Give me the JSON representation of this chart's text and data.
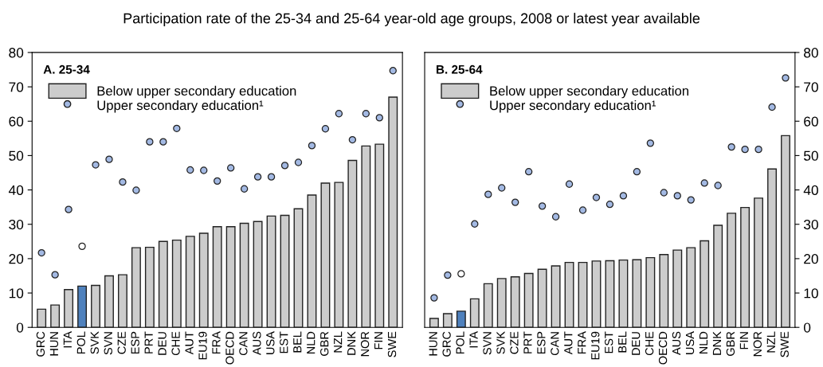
{
  "chart_data": [
    {
      "type": "bar",
      "title": "A. 25-34",
      "annotations": [
        "Participation rate of the 25-34 and 25-64 year-old age groups, 2008 or latest year available"
      ],
      "categories": [
        "GRC",
        "HUN",
        "ITA",
        "POL",
        "SVK",
        "SVN",
        "CZE",
        "ESP",
        "PRT",
        "DEU",
        "CHE",
        "AUT",
        "EU19",
        "FRA",
        "OECD",
        "CAN",
        "AUS",
        "USA",
        "EST",
        "BEL",
        "NLD",
        "GBR",
        "NZL",
        "DNK",
        "NOR",
        "FIN",
        "SWE"
      ],
      "series": [
        {
          "name": "Below upper secondary education",
          "color": "#cccccc",
          "colors": [
            "#cccccc",
            "#cccccc",
            "#cccccc",
            "#4f81bd",
            "#cccccc",
            "#cccccc",
            "#cccccc",
            "#cccccc",
            "#cccccc",
            "#cccccc",
            "#cccccc",
            "#cccccc",
            "#cccccc",
            "#cccccc",
            "#cccccc",
            "#cccccc",
            "#cccccc",
            "#cccccc",
            "#cccccc",
            "#cccccc",
            "#cccccc",
            "#cccccc",
            "#cccccc",
            "#cccccc",
            "#cccccc",
            "#cccccc",
            "#cccccc"
          ],
          "values": [
            5.3,
            6.5,
            11,
            12,
            12.2,
            15,
            15.3,
            23.2,
            23.3,
            25,
            25.4,
            26.5,
            27.4,
            29.3,
            29.3,
            30.3,
            30.8,
            32.4,
            32.6,
            34.5,
            38.5,
            42,
            42.2,
            48.6,
            52.8,
            53.3,
            67
          ]
        },
        {
          "name": "Upper secondary education¹",
          "type": "scatter",
          "color": "#a3b9e3",
          "colors": [
            "#a3b9e3",
            "#a3b9e3",
            "#a3b9e3",
            "#ffffff",
            "#a3b9e3",
            "#a3b9e3",
            "#a3b9e3",
            "#a3b9e3",
            "#a3b9e3",
            "#a3b9e3",
            "#a3b9e3",
            "#a3b9e3",
            "#a3b9e3",
            "#a3b9e3",
            "#a3b9e3",
            "#a3b9e3",
            "#a3b9e3",
            "#a3b9e3",
            "#a3b9e3",
            "#a3b9e3",
            "#a3b9e3",
            "#a3b9e3",
            "#a3b9e3",
            "#a3b9e3",
            "#a3b9e3",
            "#a3b9e3",
            "#a3b9e3"
          ],
          "values": [
            21.7,
            15.3,
            34.3,
            23.6,
            47.3,
            48.9,
            42.3,
            39.9,
            54,
            54,
            57.9,
            45.8,
            45.7,
            42.6,
            46.4,
            40.3,
            43.8,
            43.8,
            47.1,
            48,
            52.9,
            57.8,
            62.2,
            54.6,
            62.2,
            61,
            74.7
          ]
        }
      ],
      "ylim": [
        0,
        80
      ],
      "yticks": [
        0,
        10,
        20,
        30,
        40,
        50,
        60,
        70,
        80
      ],
      "legend": "top left",
      "marker": "circle",
      "grid": false
    },
    {
      "type": "bar",
      "title": "B. 25-64",
      "categories": [
        "HUN",
        "GRC",
        "POL",
        "ITA",
        "SVN",
        "SVK",
        "CZE",
        "PRT",
        "ESP",
        "CAN",
        "AUT",
        "FRA",
        "EU19",
        "EST",
        "BEL",
        "DEU",
        "CHE",
        "OECD",
        "AUS",
        "USA",
        "NLD",
        "DNK",
        "GBR",
        "FIN",
        "NOR",
        "NZL",
        "SWE"
      ],
      "series": [
        {
          "name": "Below upper secondary education",
          "axis": "y2",
          "color": "#cccccc",
          "colors": [
            "#cccccc",
            "#cccccc",
            "#4f81bd",
            "#cccccc",
            "#cccccc",
            "#cccccc",
            "#cccccc",
            "#cccccc",
            "#cccccc",
            "#cccccc",
            "#cccccc",
            "#cccccc",
            "#cccccc",
            "#cccccc",
            "#cccccc",
            "#cccccc",
            "#cccccc",
            "#cccccc",
            "#cccccc",
            "#cccccc",
            "#cccccc",
            "#cccccc",
            "#cccccc",
            "#cccccc",
            "#cccccc",
            "#cccccc",
            "#cccccc"
          ],
          "values": [
            2.6,
            4,
            4.7,
            8.3,
            12.7,
            14.2,
            14.7,
            15.7,
            16.9,
            17.9,
            18.9,
            18.9,
            19.3,
            19.4,
            19.6,
            19.7,
            20.3,
            21.2,
            22.5,
            23.2,
            25.2,
            29.7,
            33.2,
            34.9,
            37.6,
            46.1,
            55.8
          ]
        },
        {
          "name": "Upper secondary education¹",
          "type": "scatter",
          "axis": "y2",
          "color": "#a3b9e3",
          "colors": [
            "#a3b9e3",
            "#a3b9e3",
            "#ffffff",
            "#a3b9e3",
            "#a3b9e3",
            "#a3b9e3",
            "#a3b9e3",
            "#a3b9e3",
            "#a3b9e3",
            "#a3b9e3",
            "#a3b9e3",
            "#a3b9e3",
            "#a3b9e3",
            "#a3b9e3",
            "#a3b9e3",
            "#a3b9e3",
            "#a3b9e3",
            "#a3b9e3",
            "#a3b9e3",
            "#a3b9e3",
            "#a3b9e3",
            "#a3b9e3",
            "#a3b9e3",
            "#a3b9e3",
            "#a3b9e3",
            "#a3b9e3",
            "#a3b9e3"
          ],
          "values": [
            8.6,
            15.2,
            15.6,
            30.1,
            38.7,
            40.6,
            36.4,
            45.3,
            35.3,
            32.2,
            41.7,
            34.1,
            37.8,
            35.8,
            38.3,
            45.3,
            53.6,
            39.2,
            38.3,
            37.1,
            42,
            41.3,
            52.5,
            51.8,
            51.8,
            64.1,
            72.6
          ]
        }
      ],
      "y2lim": [
        0,
        80
      ],
      "y2ticks": [
        0,
        10,
        20,
        30,
        40,
        50,
        60,
        70,
        80
      ],
      "legend": "top left",
      "marker": "circle",
      "grid": false
    }
  ]
}
